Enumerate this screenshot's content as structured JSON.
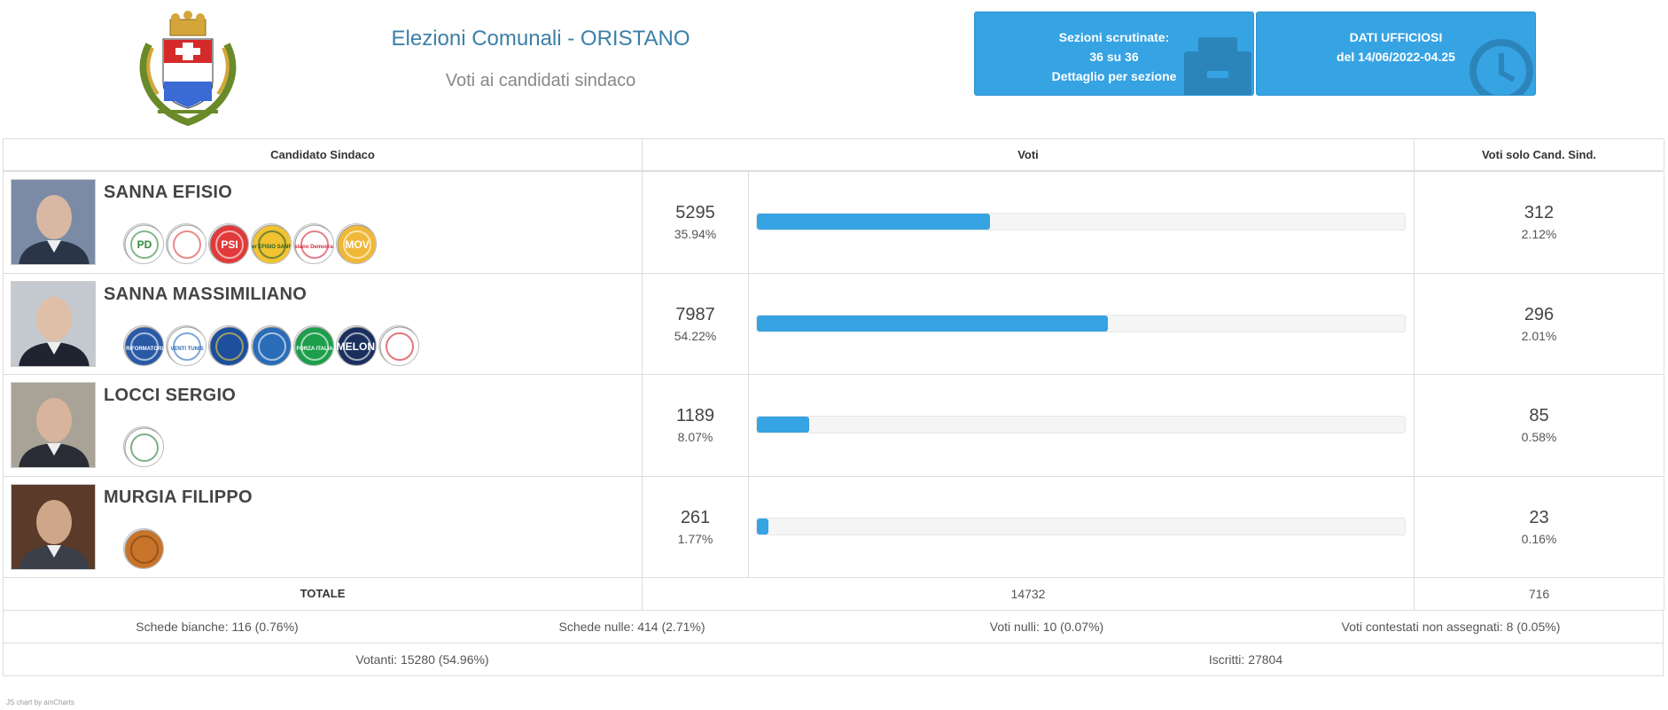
{
  "header": {
    "title": "Elezioni Comunali - ORISTANO",
    "subtitle": "Voti ai candidati sindaco",
    "box_sections": {
      "line1": "Sezioni scrutinate:",
      "line2": "36 su 36",
      "line3": "Dettaglio per sezione",
      "icon": "ballot-box-icon"
    },
    "box_data": {
      "line1": "DATI UFFICIOSI",
      "line2": "del 14/06/2022-04.25",
      "icon": "clock-icon"
    }
  },
  "table": {
    "headers": [
      "Candidato Sindaco",
      "Voti",
      "Voti solo Cand. Sind."
    ],
    "candidates": [
      {
        "name": "SANNA EFISIO",
        "votes": "5295",
        "pct": "35.94%",
        "pct_value": 35.94,
        "solo_votes": "312",
        "solo_pct": "2.12%",
        "logo_count": 6,
        "photo_colors": [
          "#7b8ba5",
          "#2b3548",
          "#d9b8a3"
        ]
      },
      {
        "name": "SANNA MASSIMILIANO",
        "votes": "7987",
        "pct": "54.22%",
        "pct_value": 54.22,
        "solo_votes": "296",
        "solo_pct": "2.01%",
        "logo_count": 7,
        "photo_colors": [
          "#c4c8cf",
          "#1f2430",
          "#e0bfa8"
        ]
      },
      {
        "name": "LOCCI SERGIO",
        "votes": "1189",
        "pct": "8.07%",
        "pct_value": 8.07,
        "solo_votes": "85",
        "solo_pct": "0.58%",
        "logo_count": 1,
        "photo_colors": [
          "#a9a397",
          "#2a2d35",
          "#d8b49c"
        ]
      },
      {
        "name": "MURGIA FILIPPO",
        "votes": "261",
        "pct": "1.77%",
        "pct_value": 1.77,
        "solo_votes": "23",
        "solo_pct": "0.16%",
        "logo_count": 1,
        "photo_colors": [
          "#5a3b2a",
          "#3a3f4a",
          "#cfa68a"
        ]
      }
    ],
    "totals": {
      "label": "TOTALE",
      "votes": "14732",
      "solo_votes": "716"
    },
    "stats": {
      "bianche": "Schede bianche: 116 (0.76%)",
      "nulle": "Schede nulle: 414 (2.71%)",
      "voti_nulli": "Voti nulli: 10 (0.07%)",
      "contestati": "Voti contestati non assegnati: 8 (0.05%)",
      "votanti": "Votanti: 15280 (54.96%)",
      "iscritti": "Iscritti: 27804"
    }
  },
  "logos": {
    "c0": [
      {
        "bg": "#ffffff",
        "fg": "#2e8b3d",
        "text": "PD"
      },
      {
        "bg": "#ffffff",
        "fg": "#e03a3a",
        "text": ""
      },
      {
        "bg": "#e03a3a",
        "fg": "#ffffff",
        "text": "PSI"
      },
      {
        "bg": "#f2c230",
        "fg": "#1f5e2e",
        "text": "Per EFISIO SANNA"
      },
      {
        "bg": "#ffffff",
        "fg": "#d62a3c",
        "text": "Oristano Democratica"
      },
      {
        "bg": "#f0b838",
        "fg": "#ffffff",
        "text": "MOV"
      }
    ],
    "c1": [
      {
        "bg": "#2a5aa6",
        "fg": "#ffffff",
        "text": "RIFORMATORI"
      },
      {
        "bg": "#ffffff",
        "fg": "#2a6cb7",
        "text": "VENTI TUNIS"
      },
      {
        "bg": "#1e4f9e",
        "fg": "#f2d33a",
        "text": ""
      },
      {
        "bg": "#2a6cb7",
        "fg": "#ffffff",
        "text": ""
      },
      {
        "bg": "#1c9e4a",
        "fg": "#ffffff",
        "text": "FORZA ITALIA"
      },
      {
        "bg": "#1a2f5e",
        "fg": "#ffffff",
        "text": "MELONI"
      },
      {
        "bg": "#ffffff",
        "fg": "#c41e2a",
        "text": ""
      }
    ],
    "c2": [
      {
        "bg": "#ffffff",
        "fg": "#2a7a3a",
        "text": ""
      }
    ],
    "c3": [
      {
        "bg": "#c8742a",
        "fg": "#7a3c10",
        "text": ""
      }
    ]
  },
  "credit": "JS chart by amCharts"
}
